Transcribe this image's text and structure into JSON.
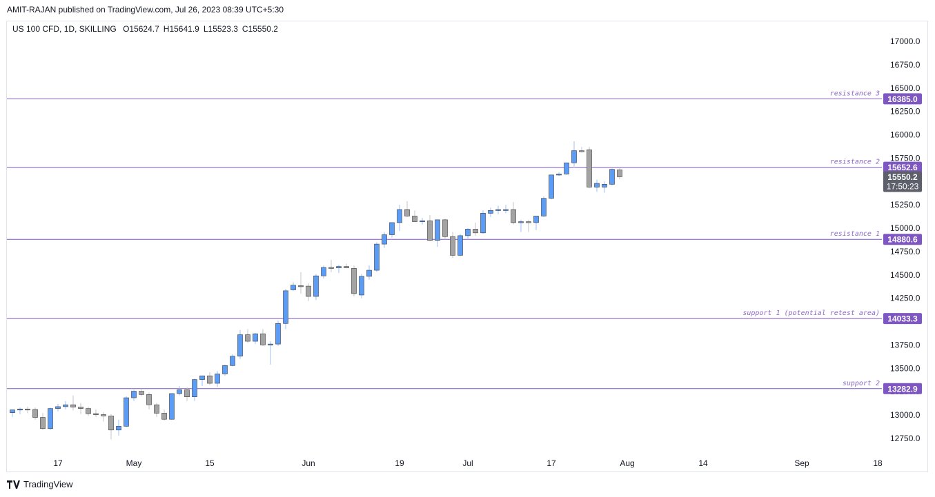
{
  "header": {
    "publisher_line": "AMIT-RAJAN published on TradingView.com, Jul 26, 2023 08:39 UTC+5:30"
  },
  "legend": {
    "symbol": "US 100 CFD, 1D, SKILLING",
    "open": "O15624.7",
    "high": "H15641.9",
    "low": "L15523.3",
    "close": "C15550.2"
  },
  "brand": {
    "name": "TradingView",
    "icon": "tradingview-logo-icon"
  },
  "colors": {
    "up": "#5b9cf6",
    "down": "#a3a3a3",
    "line": "#7e57c2",
    "label_text": "#ffffff",
    "last_price": "#5d606b"
  },
  "chart_data": {
    "type": "candlestick",
    "title": "US 100 CFD, 1D, SKILLING",
    "ylim": [
      12600,
      17200
    ],
    "y_ticks": [
      "17000.0",
      "16750.0",
      "16500.0",
      "16250.0",
      "16000.0",
      "15750.0",
      "15250.0",
      "15000.0",
      "14750.0",
      "14500.0",
      "14250.0",
      "13750.0",
      "13500.0",
      "13250.0",
      "13000.0",
      "12750.0"
    ],
    "x_ticks": [
      {
        "label": "17",
        "index": 6
      },
      {
        "label": "May",
        "index": 16
      },
      {
        "label": "15",
        "index": 26
      },
      {
        "label": "Jun",
        "index": 39
      },
      {
        "label": "19",
        "index": 51
      },
      {
        "label": "Jul",
        "index": 60
      },
      {
        "label": "17",
        "index": 71
      },
      {
        "label": "Aug",
        "index": 81
      },
      {
        "label": "14",
        "index": 91
      },
      {
        "label": "Sep",
        "index": 104
      },
      {
        "label": "18",
        "index": 114
      }
    ],
    "candles": [
      [
        13025,
        13060,
        12980,
        13055
      ],
      [
        13055,
        13080,
        13010,
        13065
      ],
      [
        13065,
        13090,
        13020,
        13060
      ],
      [
        13060,
        13080,
        12950,
        12975
      ],
      [
        12975,
        13020,
        12840,
        12855
      ],
      [
        12855,
        13080,
        12840,
        13070
      ],
      [
        13070,
        13120,
        13040,
        13090
      ],
      [
        13090,
        13150,
        13060,
        13110
      ],
      [
        13110,
        13210,
        13050,
        13085
      ],
      [
        13085,
        13130,
        13010,
        13070
      ],
      [
        13070,
        13090,
        12990,
        13015
      ],
      [
        13015,
        13060,
        12980,
        13005
      ],
      [
        13005,
        13030,
        12930,
        12990
      ],
      [
        12990,
        13010,
        12740,
        12840
      ],
      [
        12840,
        12950,
        12780,
        12880
      ],
      [
        12880,
        13200,
        12870,
        13185
      ],
      [
        13185,
        13270,
        13150,
        13255
      ],
      [
        13255,
        13280,
        13200,
        13220
      ],
      [
        13220,
        13240,
        13060,
        13110
      ],
      [
        13110,
        13130,
        12980,
        13020
      ],
      [
        13020,
        13060,
        12940,
        12955
      ],
      [
        12955,
        13230,
        12950,
        13230
      ],
      [
        13230,
        13310,
        13210,
        13270
      ],
      [
        13270,
        13300,
        13150,
        13195
      ],
      [
        13195,
        13390,
        13150,
        13380
      ],
      [
        13380,
        13420,
        13310,
        13420
      ],
      [
        13420,
        13460,
        13320,
        13340
      ],
      [
        13340,
        13470,
        13300,
        13440
      ],
      [
        13440,
        13540,
        13420,
        13530
      ],
      [
        13530,
        13650,
        13520,
        13630
      ],
      [
        13630,
        13910,
        13600,
        13860
      ],
      [
        13860,
        13920,
        13770,
        13790
      ],
      [
        13790,
        13880,
        13760,
        13870
      ],
      [
        13870,
        13920,
        13740,
        13750
      ],
      [
        13750,
        13790,
        13540,
        13760
      ],
      [
        13760,
        14010,
        13740,
        13980
      ],
      [
        13980,
        14350,
        13920,
        14330
      ],
      [
        14340,
        14420,
        14330,
        14390
      ],
      [
        14385,
        14530,
        14300,
        14380
      ],
      [
        14380,
        14410,
        14220,
        14270
      ],
      [
        14270,
        14510,
        14230,
        14490
      ],
      [
        14490,
        14600,
        14460,
        14580
      ],
      [
        14580,
        14660,
        14530,
        14575
      ],
      [
        14575,
        14610,
        14520,
        14590
      ],
      [
        14590,
        14620,
        14570,
        14575
      ],
      [
        14570,
        14600,
        14270,
        14300
      ],
      [
        14285,
        14510,
        14250,
        14485
      ],
      [
        14485,
        14600,
        14450,
        14550
      ],
      [
        14550,
        14850,
        14530,
        14830
      ],
      [
        14830,
        14960,
        14790,
        14930
      ],
      [
        14930,
        15050,
        14900,
        15060
      ],
      [
        15060,
        15250,
        14970,
        15200
      ],
      [
        15200,
        15290,
        15120,
        15130
      ],
      [
        15130,
        15190,
        15070,
        15070
      ],
      [
        15070,
        15110,
        15040,
        15080
      ],
      [
        15080,
        15140,
        14860,
        14870
      ],
      [
        14870,
        15090,
        14800,
        15090
      ],
      [
        15090,
        15100,
        14880,
        14910
      ],
      [
        14910,
        14960,
        14680,
        14710
      ],
      [
        14710,
        14940,
        14700,
        14920
      ],
      [
        14920,
        15000,
        14880,
        14990
      ],
      [
        14990,
        15060,
        14920,
        14950
      ],
      [
        14950,
        15190,
        14940,
        15160
      ],
      [
        15160,
        15220,
        15120,
        15190
      ],
      [
        15190,
        15240,
        15150,
        15200
      ],
      [
        15200,
        15250,
        15160,
        15200
      ],
      [
        15200,
        15280,
        15040,
        15060
      ],
      [
        15060,
        15090,
        14960,
        15070
      ],
      [
        15070,
        15090,
        14960,
        15060
      ],
      [
        15060,
        15120,
        14980,
        15130
      ],
      [
        15130,
        15340,
        15120,
        15320
      ],
      [
        15320,
        15570,
        15310,
        15570
      ],
      [
        15570,
        15600,
        15560,
        15580
      ],
      [
        15580,
        15700,
        15570,
        15700
      ],
      [
        15700,
        15930,
        15650,
        15830
      ],
      [
        15830,
        15870,
        15810,
        15825
      ],
      [
        15840,
        15870,
        15430,
        15440
      ],
      [
        15440,
        15520,
        15390,
        15480
      ],
      [
        15440,
        15500,
        15380,
        15470
      ],
      [
        15470,
        15640,
        15460,
        15630
      ],
      [
        15624.7,
        15641.9,
        15523.3,
        15550.2
      ]
    ],
    "levels": [
      {
        "label": "resistance 3",
        "value": 16385.0,
        "value_text": "16385.0"
      },
      {
        "label": "resistance 2",
        "value": 15652.6,
        "value_text": "15652.6"
      },
      {
        "label": "resistance 1",
        "value": 14880.6,
        "value_text": "14880.6"
      },
      {
        "label": "support 1 (potential retest area)",
        "value": 14033.3,
        "value_text": "14033.3"
      },
      {
        "label": "support 2",
        "value": 13282.9,
        "value_text": "13282.9"
      }
    ],
    "last_price": {
      "value": 15550.2,
      "value_text": "15550.2",
      "countdown": "17:50:23"
    }
  }
}
